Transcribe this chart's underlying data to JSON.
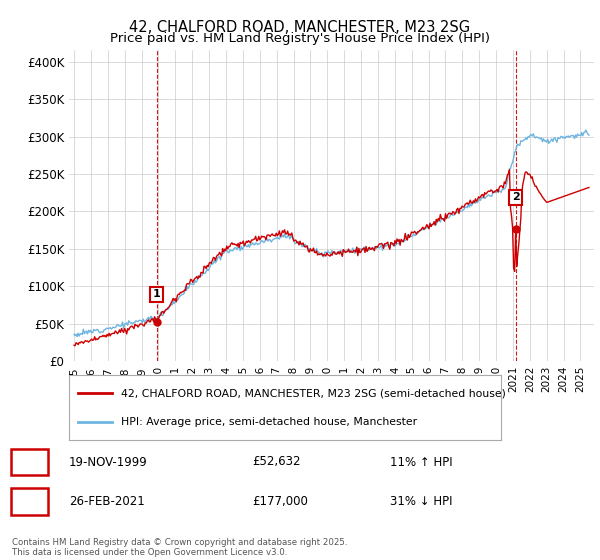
{
  "title": "42, CHALFORD ROAD, MANCHESTER, M23 2SG",
  "subtitle": "Price paid vs. HM Land Registry's House Price Index (HPI)",
  "ylabel_ticks": [
    "£0",
    "£50K",
    "£100K",
    "£150K",
    "£200K",
    "£250K",
    "£300K",
    "£350K",
    "£400K"
  ],
  "ytick_values": [
    0,
    50000,
    100000,
    150000,
    200000,
    250000,
    300000,
    350000,
    400000
  ],
  "ylim": [
    0,
    415000
  ],
  "xlim_start": 1994.7,
  "xlim_end": 2025.8,
  "hpi_color": "#6eb5e0",
  "price_color": "#cc0000",
  "vline_color": "#cc0000",
  "marker1_x": 1999.89,
  "marker1_y": 52632,
  "marker1_label": "1",
  "marker2_x": 2021.15,
  "marker2_y": 177000,
  "marker2_label": "2",
  "legend_line1": "42, CHALFORD ROAD, MANCHESTER, M23 2SG (semi-detached house)",
  "legend_line2": "HPI: Average price, semi-detached house, Manchester",
  "table_row1": [
    "1",
    "19-NOV-1999",
    "£52,632",
    "11% ↑ HPI"
  ],
  "table_row2": [
    "2",
    "26-FEB-2021",
    "£177,000",
    "31% ↓ HPI"
  ],
  "footnote": "Contains HM Land Registry data © Crown copyright and database right 2025.\nThis data is licensed under the Open Government Licence v3.0.",
  "background_color": "#ffffff",
  "grid_color": "#cccccc"
}
